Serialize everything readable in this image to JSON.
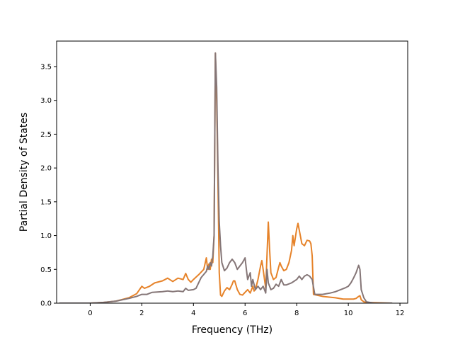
{
  "chart_data": {
    "type": "line",
    "title": "",
    "xlabel": "Frequency (THz)",
    "ylabel": "Partial Density of States",
    "xlim": [
      -1.3,
      12.3
    ],
    "ylim": [
      0,
      3.5
    ],
    "ylim_shown": [
      0,
      3.5
    ],
    "x_ticks": [
      0,
      2,
      4,
      6,
      8,
      10,
      12
    ],
    "x_tick_labels": [
      "0",
      "2",
      "4",
      "6",
      "8",
      "10",
      "12"
    ],
    "y_ticks": [
      0,
      0.5,
      1.0,
      1.5,
      2.0,
      2.5,
      3.0,
      3.5
    ],
    "y_tick_labels": [
      "0.0",
      "0.5",
      "1.0",
      "1.5",
      "2.0",
      "2.5",
      "3.0",
      "3.5"
    ],
    "grid": false,
    "legend": "none",
    "series": [
      {
        "color": "#e6832a",
        "points": [
          [
            -1.2,
            0.0
          ],
          [
            0.0,
            0.0
          ],
          [
            0.5,
            0.01
          ],
          [
            1.0,
            0.03
          ],
          [
            1.5,
            0.08
          ],
          [
            1.8,
            0.14
          ],
          [
            2.0,
            0.25
          ],
          [
            2.1,
            0.22
          ],
          [
            2.3,
            0.25
          ],
          [
            2.5,
            0.3
          ],
          [
            2.8,
            0.33
          ],
          [
            3.0,
            0.37
          ],
          [
            3.2,
            0.32
          ],
          [
            3.4,
            0.37
          ],
          [
            3.6,
            0.35
          ],
          [
            3.7,
            0.44
          ],
          [
            3.8,
            0.35
          ],
          [
            3.9,
            0.31
          ],
          [
            4.0,
            0.35
          ],
          [
            4.2,
            0.42
          ],
          [
            4.4,
            0.5
          ],
          [
            4.5,
            0.67
          ],
          [
            4.55,
            0.5
          ],
          [
            4.6,
            0.58
          ],
          [
            4.65,
            0.5
          ],
          [
            4.7,
            0.65
          ],
          [
            4.75,
            0.6
          ],
          [
            4.8,
            1.0
          ],
          [
            4.85,
            3.7
          ],
          [
            4.9,
            3.0
          ],
          [
            4.95,
            1.8
          ],
          [
            5.0,
            0.45
          ],
          [
            5.05,
            0.12
          ],
          [
            5.1,
            0.1
          ],
          [
            5.2,
            0.18
          ],
          [
            5.3,
            0.23
          ],
          [
            5.4,
            0.2
          ],
          [
            5.5,
            0.28
          ],
          [
            5.55,
            0.33
          ],
          [
            5.6,
            0.33
          ],
          [
            5.7,
            0.2
          ],
          [
            5.8,
            0.13
          ],
          [
            5.9,
            0.12
          ],
          [
            6.0,
            0.16
          ],
          [
            6.1,
            0.2
          ],
          [
            6.2,
            0.15
          ],
          [
            6.3,
            0.25
          ],
          [
            6.35,
            0.18
          ],
          [
            6.4,
            0.2
          ],
          [
            6.5,
            0.35
          ],
          [
            6.6,
            0.55
          ],
          [
            6.65,
            0.63
          ],
          [
            6.7,
            0.5
          ],
          [
            6.8,
            0.22
          ],
          [
            6.9,
            1.2
          ],
          [
            6.95,
            0.8
          ],
          [
            7.0,
            0.45
          ],
          [
            7.1,
            0.35
          ],
          [
            7.2,
            0.38
          ],
          [
            7.3,
            0.53
          ],
          [
            7.35,
            0.6
          ],
          [
            7.4,
            0.55
          ],
          [
            7.5,
            0.48
          ],
          [
            7.6,
            0.5
          ],
          [
            7.7,
            0.6
          ],
          [
            7.8,
            0.78
          ],
          [
            7.85,
            1.0
          ],
          [
            7.9,
            0.85
          ],
          [
            8.0,
            1.1
          ],
          [
            8.05,
            1.18
          ],
          [
            8.1,
            1.08
          ],
          [
            8.2,
            0.88
          ],
          [
            8.3,
            0.85
          ],
          [
            8.4,
            0.93
          ],
          [
            8.5,
            0.92
          ],
          [
            8.55,
            0.88
          ],
          [
            8.6,
            0.7
          ],
          [
            8.65,
            0.13
          ],
          [
            9.0,
            0.1
          ],
          [
            9.5,
            0.08
          ],
          [
            9.8,
            0.06
          ],
          [
            10.0,
            0.06
          ],
          [
            10.2,
            0.06
          ],
          [
            10.3,
            0.07
          ],
          [
            10.4,
            0.1
          ],
          [
            10.45,
            0.11
          ],
          [
            10.5,
            0.05
          ],
          [
            10.6,
            0.02
          ],
          [
            10.7,
            0.01
          ],
          [
            11.7,
            0.0
          ]
        ]
      },
      {
        "color": "#857677",
        "points": [
          [
            -1.2,
            0.0
          ],
          [
            0.0,
            0.0
          ],
          [
            0.5,
            0.01
          ],
          [
            1.0,
            0.03
          ],
          [
            1.5,
            0.07
          ],
          [
            1.8,
            0.1
          ],
          [
            2.0,
            0.13
          ],
          [
            2.2,
            0.13
          ],
          [
            2.4,
            0.16
          ],
          [
            2.8,
            0.17
          ],
          [
            3.0,
            0.18
          ],
          [
            3.2,
            0.17
          ],
          [
            3.4,
            0.18
          ],
          [
            3.6,
            0.17
          ],
          [
            3.7,
            0.22
          ],
          [
            3.8,
            0.19
          ],
          [
            4.0,
            0.2
          ],
          [
            4.1,
            0.22
          ],
          [
            4.3,
            0.38
          ],
          [
            4.5,
            0.47
          ],
          [
            4.55,
            0.55
          ],
          [
            4.6,
            0.5
          ],
          [
            4.65,
            0.6
          ],
          [
            4.7,
            0.55
          ],
          [
            4.75,
            0.7
          ],
          [
            4.8,
            1.0
          ],
          [
            4.85,
            3.7
          ],
          [
            4.9,
            3.2
          ],
          [
            4.95,
            2.0
          ],
          [
            5.0,
            1.2
          ],
          [
            5.05,
            0.85
          ],
          [
            5.1,
            0.6
          ],
          [
            5.2,
            0.48
          ],
          [
            5.3,
            0.52
          ],
          [
            5.4,
            0.6
          ],
          [
            5.5,
            0.65
          ],
          [
            5.6,
            0.6
          ],
          [
            5.7,
            0.5
          ],
          [
            5.8,
            0.55
          ],
          [
            5.9,
            0.6
          ],
          [
            6.0,
            0.67
          ],
          [
            6.05,
            0.5
          ],
          [
            6.1,
            0.35
          ],
          [
            6.2,
            0.45
          ],
          [
            6.25,
            0.25
          ],
          [
            6.3,
            0.35
          ],
          [
            6.4,
            0.2
          ],
          [
            6.5,
            0.25
          ],
          [
            6.6,
            0.2
          ],
          [
            6.7,
            0.25
          ],
          [
            6.8,
            0.15
          ],
          [
            6.85,
            0.5
          ],
          [
            6.9,
            0.3
          ],
          [
            7.0,
            0.2
          ],
          [
            7.1,
            0.22
          ],
          [
            7.2,
            0.28
          ],
          [
            7.3,
            0.25
          ],
          [
            7.4,
            0.35
          ],
          [
            7.5,
            0.27
          ],
          [
            7.6,
            0.27
          ],
          [
            7.8,
            0.3
          ],
          [
            8.0,
            0.35
          ],
          [
            8.1,
            0.4
          ],
          [
            8.2,
            0.35
          ],
          [
            8.3,
            0.4
          ],
          [
            8.4,
            0.42
          ],
          [
            8.5,
            0.4
          ],
          [
            8.6,
            0.35
          ],
          [
            8.7,
            0.13
          ],
          [
            9.0,
            0.13
          ],
          [
            9.3,
            0.15
          ],
          [
            9.5,
            0.17
          ],
          [
            9.7,
            0.2
          ],
          [
            9.9,
            0.23
          ],
          [
            10.0,
            0.25
          ],
          [
            10.1,
            0.3
          ],
          [
            10.2,
            0.37
          ],
          [
            10.3,
            0.45
          ],
          [
            10.4,
            0.56
          ],
          [
            10.45,
            0.5
          ],
          [
            10.5,
            0.2
          ],
          [
            10.6,
            0.08
          ],
          [
            10.7,
            0.02
          ],
          [
            11.0,
            0.0
          ],
          [
            11.7,
            0.0
          ]
        ]
      }
    ]
  }
}
